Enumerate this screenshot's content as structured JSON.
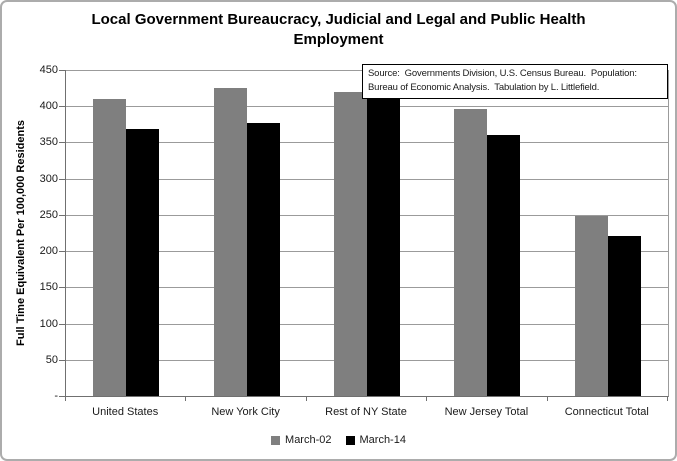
{
  "title_lines": [
    "Local Government Bureaucracy, Judicial and Legal and Public Health",
    "Employment"
  ],
  "source_note_lines": [
    "Source:  Governments Division, U.S. Census Bureau.  Population:",
    "Bureau of Economic Analysis.  Tabulation by L. Littlefield."
  ],
  "chart_data": {
    "type": "bar",
    "title": "Local Government Bureaucracy, Judicial and Legal and Public Health Employment",
    "xlabel": "",
    "ylabel": "Full Time Equivalent Per 100,000 Residents",
    "ylim": [
      0,
      450
    ],
    "grid": true,
    "legend_position": "bottom",
    "source_note": "Source:  Governments Division, U.S. Census Bureau.  Population: Bureau of Economic Analysis.  Tabulation by L. Littlefield.",
    "yticks": [
      {
        "value": 0,
        "label": "-"
      },
      {
        "value": 50,
        "label": "50"
      },
      {
        "value": 100,
        "label": "100"
      },
      {
        "value": 150,
        "label": "150"
      },
      {
        "value": 200,
        "label": "200"
      },
      {
        "value": 250,
        "label": "250"
      },
      {
        "value": 300,
        "label": "300"
      },
      {
        "value": 350,
        "label": "350"
      },
      {
        "value": 400,
        "label": "400"
      },
      {
        "value": 450,
        "label": "450"
      }
    ],
    "categories": [
      "United States",
      "New York City",
      "Rest of NY State",
      "New Jersey Total",
      "Connecticut Total"
    ],
    "series": [
      {
        "name": "March-02",
        "color": "#7f7f7f",
        "values": [
          410,
          425,
          419,
          396,
          249
        ]
      },
      {
        "name": "March-14",
        "color": "#000000",
        "values": [
          368,
          377,
          410,
          360,
          221
        ]
      }
    ]
  },
  "colors": {
    "bar_march02": "#7f7f7f",
    "bar_march14": "#000000",
    "gridline": "#9b9b9b",
    "axis": "#707070",
    "outer_border": "#acacac"
  }
}
